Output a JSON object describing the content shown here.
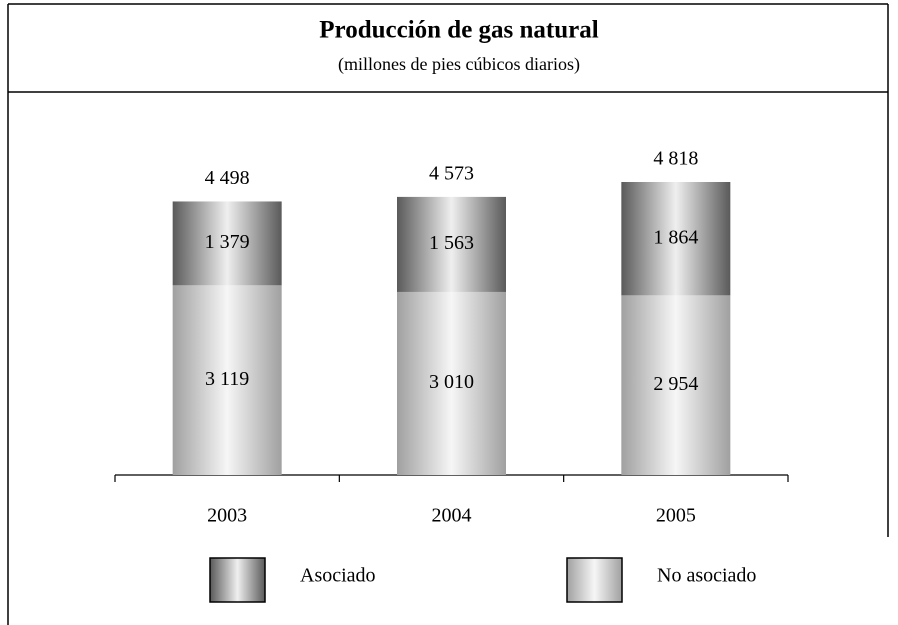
{
  "chart_data": {
    "type": "stacked-bar",
    "title": "Producción de gas natural",
    "subtitle": "(millones de pies cúbicos diarios)",
    "categories": [
      "2003",
      "2004",
      "2005"
    ],
    "series": [
      {
        "name": "No asociado",
        "color": "#a0a0a0",
        "values": [
          3119,
          3010,
          2954
        ],
        "value_labels": [
          "3 119",
          "3 010",
          "2 954"
        ]
      },
      {
        "name": "Asociado",
        "color": "#5a5a5a",
        "values": [
          1379,
          1563,
          1864
        ],
        "value_labels": [
          "1 379",
          "1 563",
          "1 864"
        ]
      }
    ],
    "totals": [
      4498,
      4573,
      4818
    ],
    "total_labels": [
      "4 498",
      "4 573",
      "4 818"
    ]
  }
}
